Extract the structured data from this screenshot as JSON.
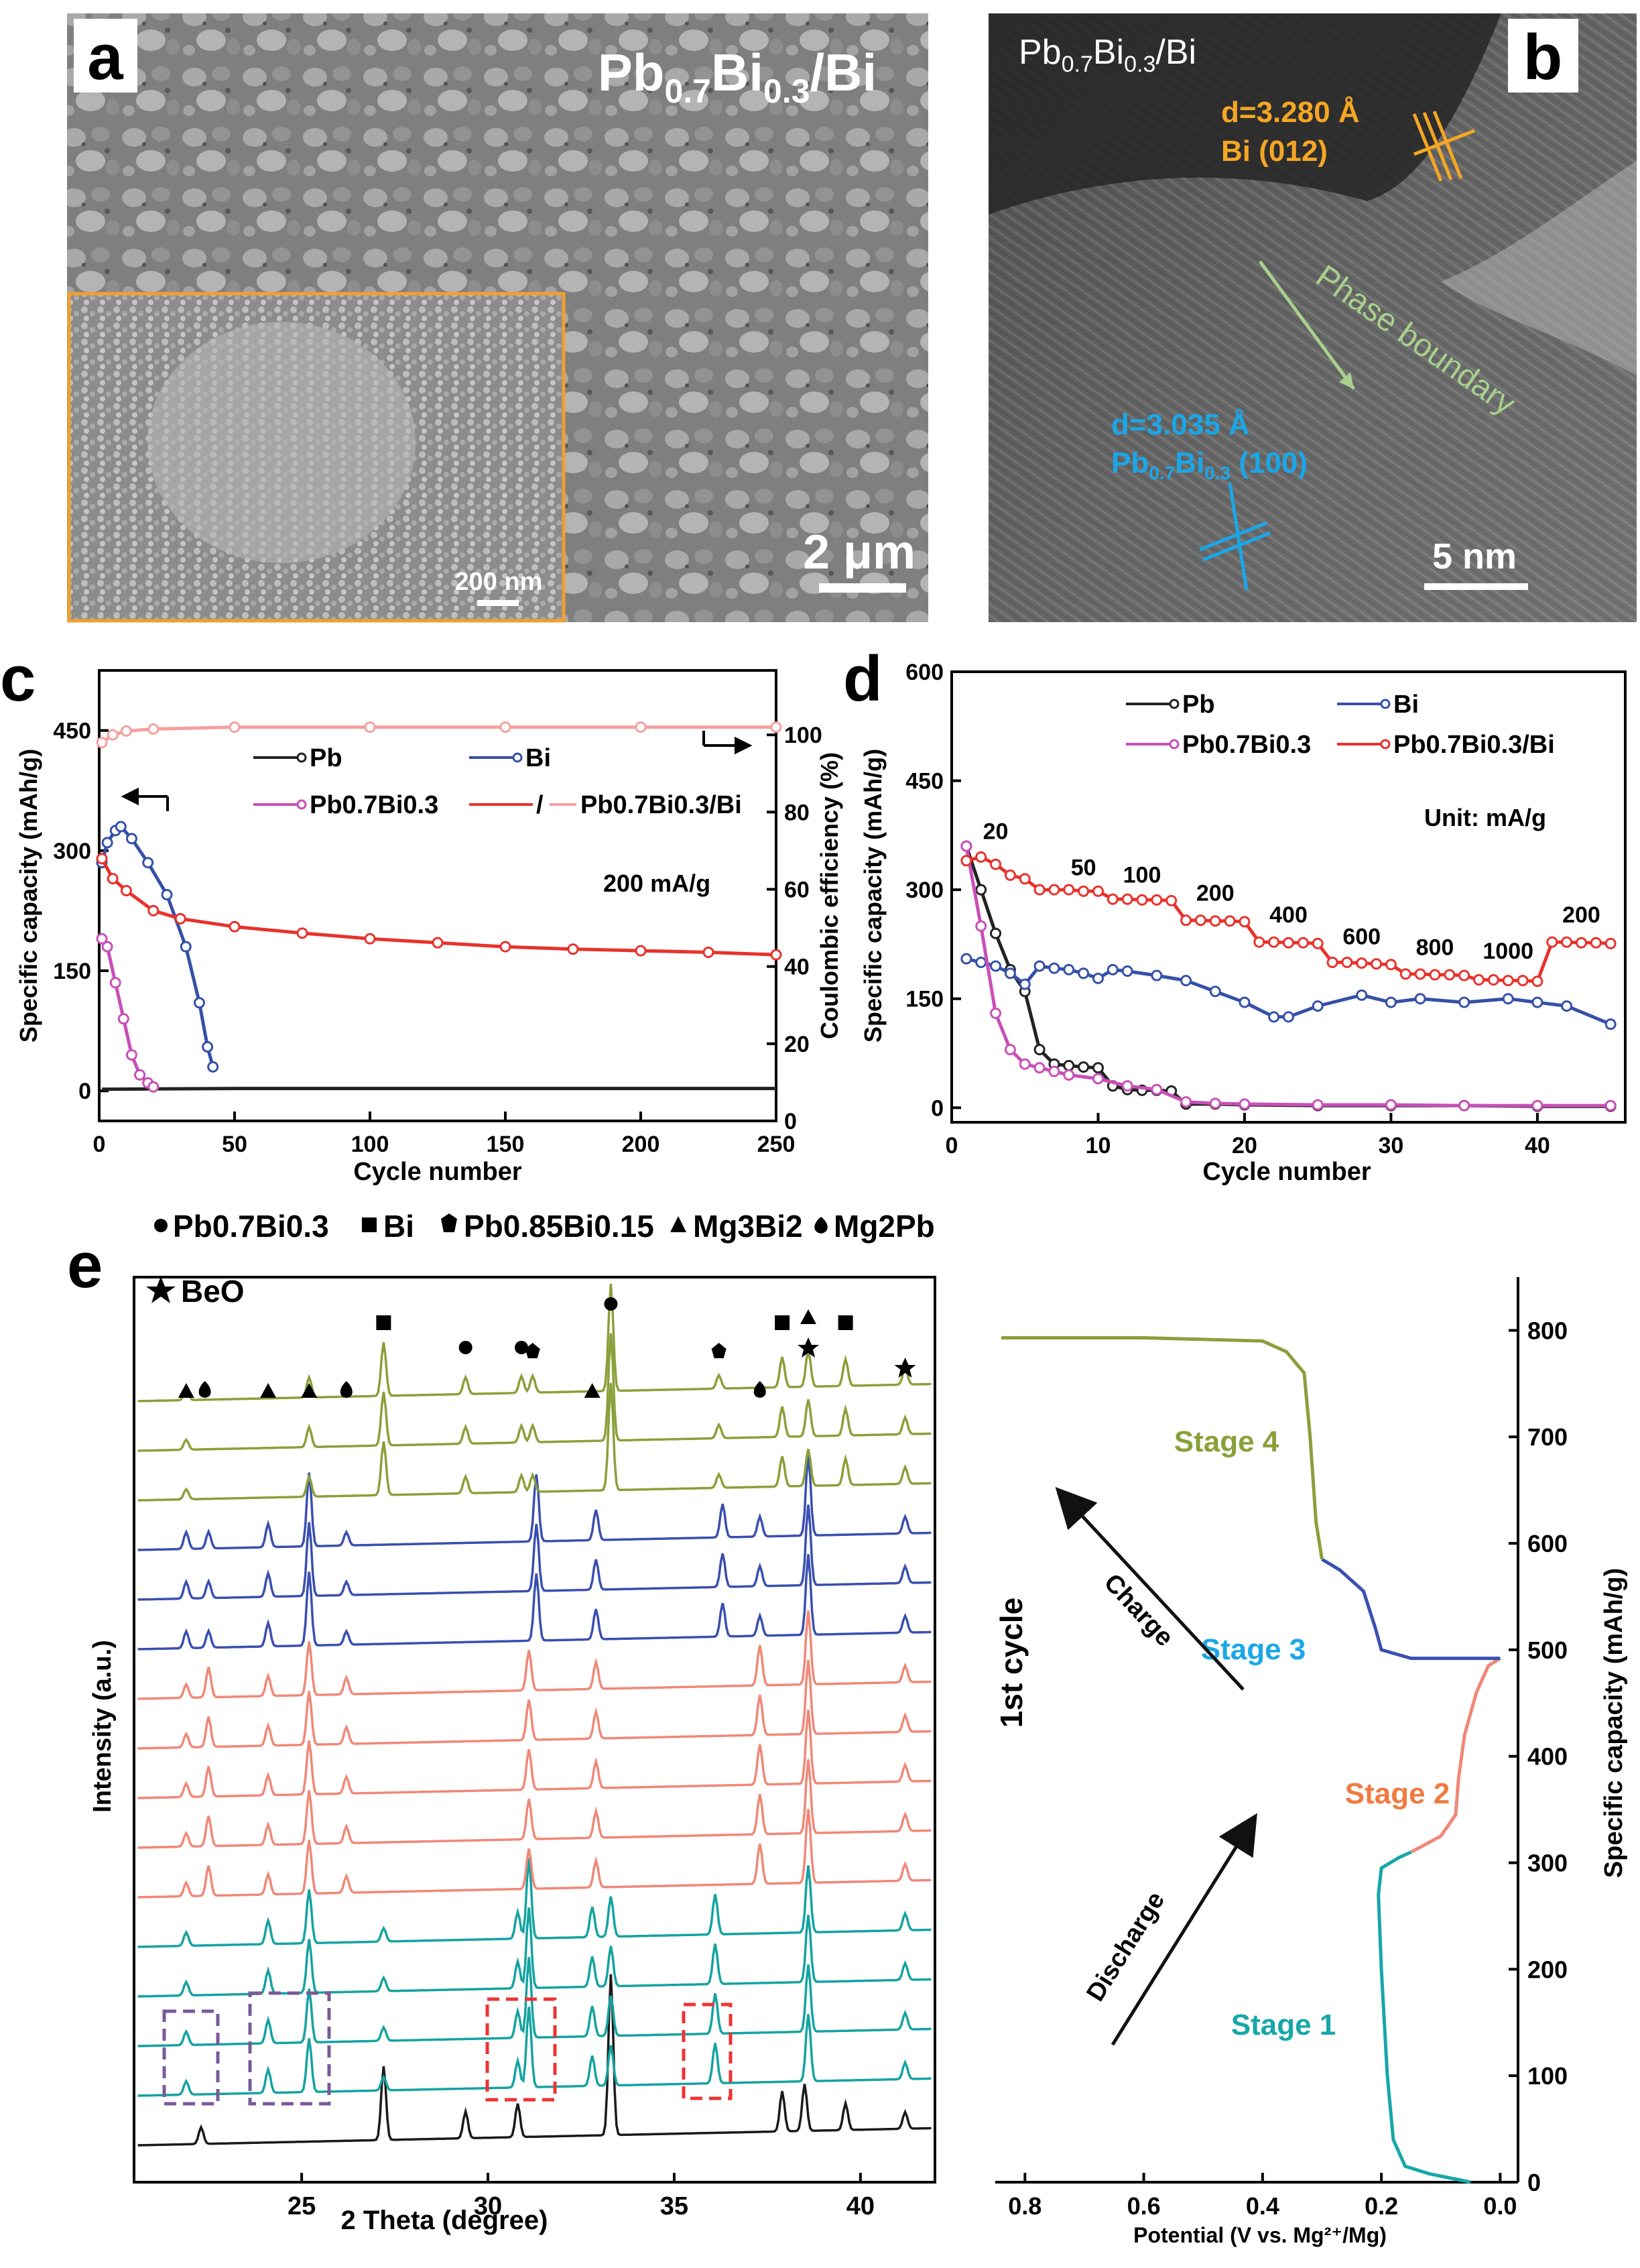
{
  "panel_a": {
    "letter": "a",
    "title_main": "Pb",
    "title_sub1": "0.7",
    "title_mid": "Bi",
    "title_sub2": "0.3",
    "title_end": "/Bi",
    "scale_bar": "2 μm",
    "inset_scale_bar": "200 nm"
  },
  "panel_b": {
    "letter": "b",
    "title_main": "Pb",
    "title_sub1": "0.7",
    "title_mid": "Bi",
    "title_sub2": "0.3",
    "title_end": "/Bi",
    "d1_label": "d=3.280 Å",
    "d1_plane": "Bi (012)",
    "boundary_label": "Phase boundary",
    "d2_label": "d=3.035 Å",
    "d2_plane_main": "Pb",
    "d2_plane_sub1": "0.7",
    "d2_plane_mid": "Bi",
    "d2_plane_sub2": "0.3",
    "d2_plane_end": " (100)",
    "scale_bar": "5 nm",
    "colors": {
      "orange": "#f5a623",
      "blue": "#1aa7e8",
      "green": "#a8d08d"
    }
  },
  "panel_c": {
    "letter": "c",
    "annotation": "200 mA/g",
    "legend": [
      "Pb",
      "Bi",
      "Pb0.7Bi0.3",
      "Pb0.7Bi0.3/Bi"
    ],
    "legend_sep": "/"
  },
  "panel_d": {
    "letter": "d",
    "unit_label": "Unit: mA/g",
    "rate_labels": [
      "20",
      "50",
      "100",
      "200",
      "400",
      "600",
      "800",
      "1000",
      "200"
    ],
    "legend": [
      "Pb",
      "Bi",
      "Pb0.7Bi0.3",
      "Pb0.7Bi0.3/Bi"
    ]
  },
  "panel_e": {
    "letter": "e",
    "phase_legend": [
      "Pb0.7Bi0.3",
      "Bi",
      "Pb0.85Bi0.15",
      "Mg3Bi2",
      "Mg2Pb",
      "BeO"
    ],
    "y_label": "Intensity (a.u.)",
    "x_label": "2 Theta (degree)",
    "x_ticks": [
      "25",
      "30",
      "35",
      "40"
    ],
    "right_x_label": "Potential (V vs. Mg²⁺/Mg)",
    "right_y_label": "Specific capacity (mAh/g)",
    "right_x_ticks": [
      "0.8",
      "0.6",
      "0.4",
      "0.2",
      "0.0"
    ],
    "right_y_ticks": [
      "0",
      "100",
      "200",
      "300",
      "400",
      "500",
      "600",
      "700",
      "800"
    ],
    "cycle_label": "1st cycle",
    "stages": [
      "Stage 1",
      "Stage 2",
      "Stage 3",
      "Stage 4"
    ],
    "arrows": [
      "Discharge",
      "Charge"
    ],
    "colors": {
      "stage1": "#16a7a8",
      "stage2": "#f08878",
      "stage3": "#3a4fb0",
      "stage4": "#8aa03a"
    }
  },
  "chart_data": [
    {
      "id": "c",
      "type": "line",
      "title": "",
      "xlabel": "Cycle number",
      "ylabel": "Specific capacity (mAh/g)",
      "y2label": "Coulombic efficiency (%)",
      "xlim": [
        0,
        250
      ],
      "ylim": [
        -37.5,
        525
      ],
      "y2lim": [
        0,
        116.7
      ],
      "x_ticks": [
        0,
        50,
        100,
        150,
        200,
        250
      ],
      "y_ticks": [
        0,
        150,
        300,
        450
      ],
      "y2_ticks": [
        0,
        20,
        40,
        60,
        80,
        100
      ],
      "series": [
        {
          "name": "Pb",
          "color": "#222222",
          "x": [
            1,
            50,
            100,
            150,
            200,
            250
          ],
          "y": [
            2,
            3,
            3,
            3,
            3,
            3
          ]
        },
        {
          "name": "Bi",
          "color": "#3550a8",
          "x": [
            1,
            3,
            6,
            8,
            12,
            18,
            25,
            32,
            37,
            40,
            42
          ],
          "y": [
            285,
            310,
            325,
            330,
            315,
            285,
            245,
            180,
            110,
            55,
            30
          ]
        },
        {
          "name": "Pb0.7Bi0.3",
          "color": "#c94fb8",
          "x": [
            1,
            3,
            6,
            9,
            12,
            15,
            18,
            20
          ],
          "y": [
            190,
            180,
            135,
            90,
            45,
            20,
            10,
            5
          ]
        },
        {
          "name": "Pb0.7Bi0.3/Bi",
          "color": "#e8322c",
          "x": [
            1,
            5,
            10,
            20,
            30,
            50,
            75,
            100,
            125,
            150,
            175,
            200,
            225,
            250
          ],
          "y": [
            290,
            265,
            250,
            225,
            215,
            205,
            197,
            190,
            185,
            180,
            177,
            175,
            173,
            170
          ]
        },
        {
          "name": "Pb0.7Bi0.3/Bi CE",
          "color": "#f4a0a0",
          "axis": "right",
          "x": [
            1,
            5,
            10,
            20,
            50,
            100,
            150,
            200,
            250
          ],
          "y": [
            98,
            100,
            101,
            101.5,
            102,
            102,
            102,
            102,
            102
          ]
        }
      ]
    },
    {
      "id": "d",
      "type": "line",
      "title": "",
      "xlabel": "Cycle number",
      "ylabel": "Specific capacity (mAh/g)",
      "xlim": [
        0,
        46
      ],
      "ylim": [
        -20,
        600
      ],
      "x_ticks": [
        0,
        10,
        20,
        30,
        40
      ],
      "y_ticks": [
        0,
        150,
        300,
        450,
        600
      ],
      "series": [
        {
          "name": "Pb",
          "color": "#222222",
          "x": [
            1,
            2,
            3,
            4,
            5,
            6,
            7,
            8,
            9,
            10,
            11,
            12,
            13,
            14,
            15,
            16,
            18,
            20,
            25,
            30,
            35,
            40,
            45
          ],
          "y": [
            360,
            300,
            240,
            190,
            160,
            80,
            60,
            58,
            56,
            55,
            30,
            25,
            24,
            24,
            23,
            5,
            5,
            4,
            3,
            3,
            3,
            2,
            2
          ]
        },
        {
          "name": "Bi",
          "color": "#3550a8",
          "x": [
            1,
            2,
            3,
            4,
            5,
            6,
            7,
            8,
            9,
            10,
            11,
            12,
            14,
            16,
            18,
            20,
            22,
            23,
            25,
            28,
            30,
            32,
            35,
            38,
            40,
            42,
            45
          ],
          "y": [
            205,
            200,
            195,
            185,
            170,
            195,
            192,
            190,
            185,
            178,
            190,
            188,
            182,
            175,
            160,
            145,
            125,
            125,
            140,
            155,
            145,
            150,
            145,
            150,
            145,
            140,
            115
          ]
        },
        {
          "name": "Pb0.7Bi0.3",
          "color": "#c94fb8",
          "x": [
            1,
            2,
            3,
            4,
            5,
            6,
            7,
            8,
            10,
            12,
            14,
            16,
            18,
            20,
            25,
            30,
            35,
            40,
            45
          ],
          "y": [
            360,
            250,
            130,
            80,
            60,
            55,
            50,
            45,
            40,
            30,
            25,
            8,
            6,
            5,
            4,
            4,
            3,
            3,
            3
          ]
        },
        {
          "name": "Pb0.7Bi0.3/Bi",
          "color": "#e8322c",
          "x": [
            1,
            2,
            3,
            4,
            5,
            6,
            7,
            8,
            9,
            10,
            11,
            12,
            13,
            14,
            15,
            16,
            17,
            18,
            19,
            20,
            21,
            22,
            23,
            24,
            25,
            26,
            27,
            28,
            29,
            30,
            31,
            32,
            33,
            34,
            35,
            36,
            37,
            38,
            39,
            40,
            41,
            42,
            43,
            44,
            45
          ],
          "y": [
            340,
            345,
            335,
            320,
            315,
            300,
            300,
            300,
            298,
            298,
            287,
            287,
            286,
            286,
            285,
            258,
            258,
            257,
            257,
            256,
            228,
            228,
            227,
            227,
            226,
            200,
            200,
            199,
            198,
            197,
            184,
            184,
            183,
            183,
            182,
            176,
            176,
            175,
            175,
            174,
            228,
            228,
            227,
            227,
            226
          ]
        }
      ]
    },
    {
      "id": "e-xrd",
      "type": "line",
      "title": "",
      "xlabel": "2 Theta (degree)",
      "ylabel": "Intensity (a.u.)",
      "xlim": [
        20.5,
        42
      ],
      "x_ticks": [
        25,
        30,
        35,
        40
      ],
      "n_patterns": 16,
      "pattern_colors": [
        "#1a1a1a",
        "#14a3a0",
        "#14a3a0",
        "#14a3a0",
        "#14a3a0",
        "#f08878",
        "#f08878",
        "#f08878",
        "#f08878",
        "#f08878",
        "#3a4fb0",
        "#3a4fb0",
        "#3a4fb0",
        "#8aa03a",
        "#8aa03a",
        "#8aa03a"
      ]
    },
    {
      "id": "e-voltage",
      "type": "line",
      "title": "",
      "xlabel": "Potential (V vs. Mg2+/Mg)",
      "ylabel": "Specific capacity (mAh/g)",
      "xlim": [
        0.85,
        -0.03
      ],
      "ylim": [
        0,
        850
      ],
      "x_ticks": [
        0.8,
        0.6,
        0.4,
        0.2,
        0.0
      ],
      "y_ticks": [
        0,
        100,
        200,
        300,
        400,
        500,
        600,
        700,
        800
      ],
      "series": [
        {
          "name": "Stage 1",
          "color": "#16a7a8",
          "x": [
            0.05,
            0.12,
            0.16,
            0.18,
            0.19,
            0.2,
            0.205,
            0.2,
            0.17,
            0.15
          ],
          "y": [
            0,
            8,
            15,
            40,
            100,
            200,
            270,
            295,
            305,
            310
          ]
        },
        {
          "name": "Stage 2",
          "color": "#f08878",
          "x": [
            0.15,
            0.1,
            0.075,
            0.07,
            0.06,
            0.04,
            0.02,
            0.0
          ],
          "y": [
            310,
            325,
            345,
            380,
            420,
            460,
            485,
            492
          ]
        },
        {
          "name": "Stage 3",
          "color": "#3a4fb0",
          "x": [
            0.0,
            0.15,
            0.2,
            0.21,
            0.23,
            0.27,
            0.3
          ],
          "y": [
            492,
            492,
            500,
            520,
            555,
            575,
            585
          ]
        },
        {
          "name": "Stage 4",
          "color": "#8aa03a",
          "x": [
            0.3,
            0.31,
            0.32,
            0.33,
            0.36,
            0.4,
            0.6,
            0.84
          ],
          "y": [
            585,
            620,
            700,
            760,
            780,
            790,
            793,
            793
          ]
        }
      ]
    }
  ]
}
